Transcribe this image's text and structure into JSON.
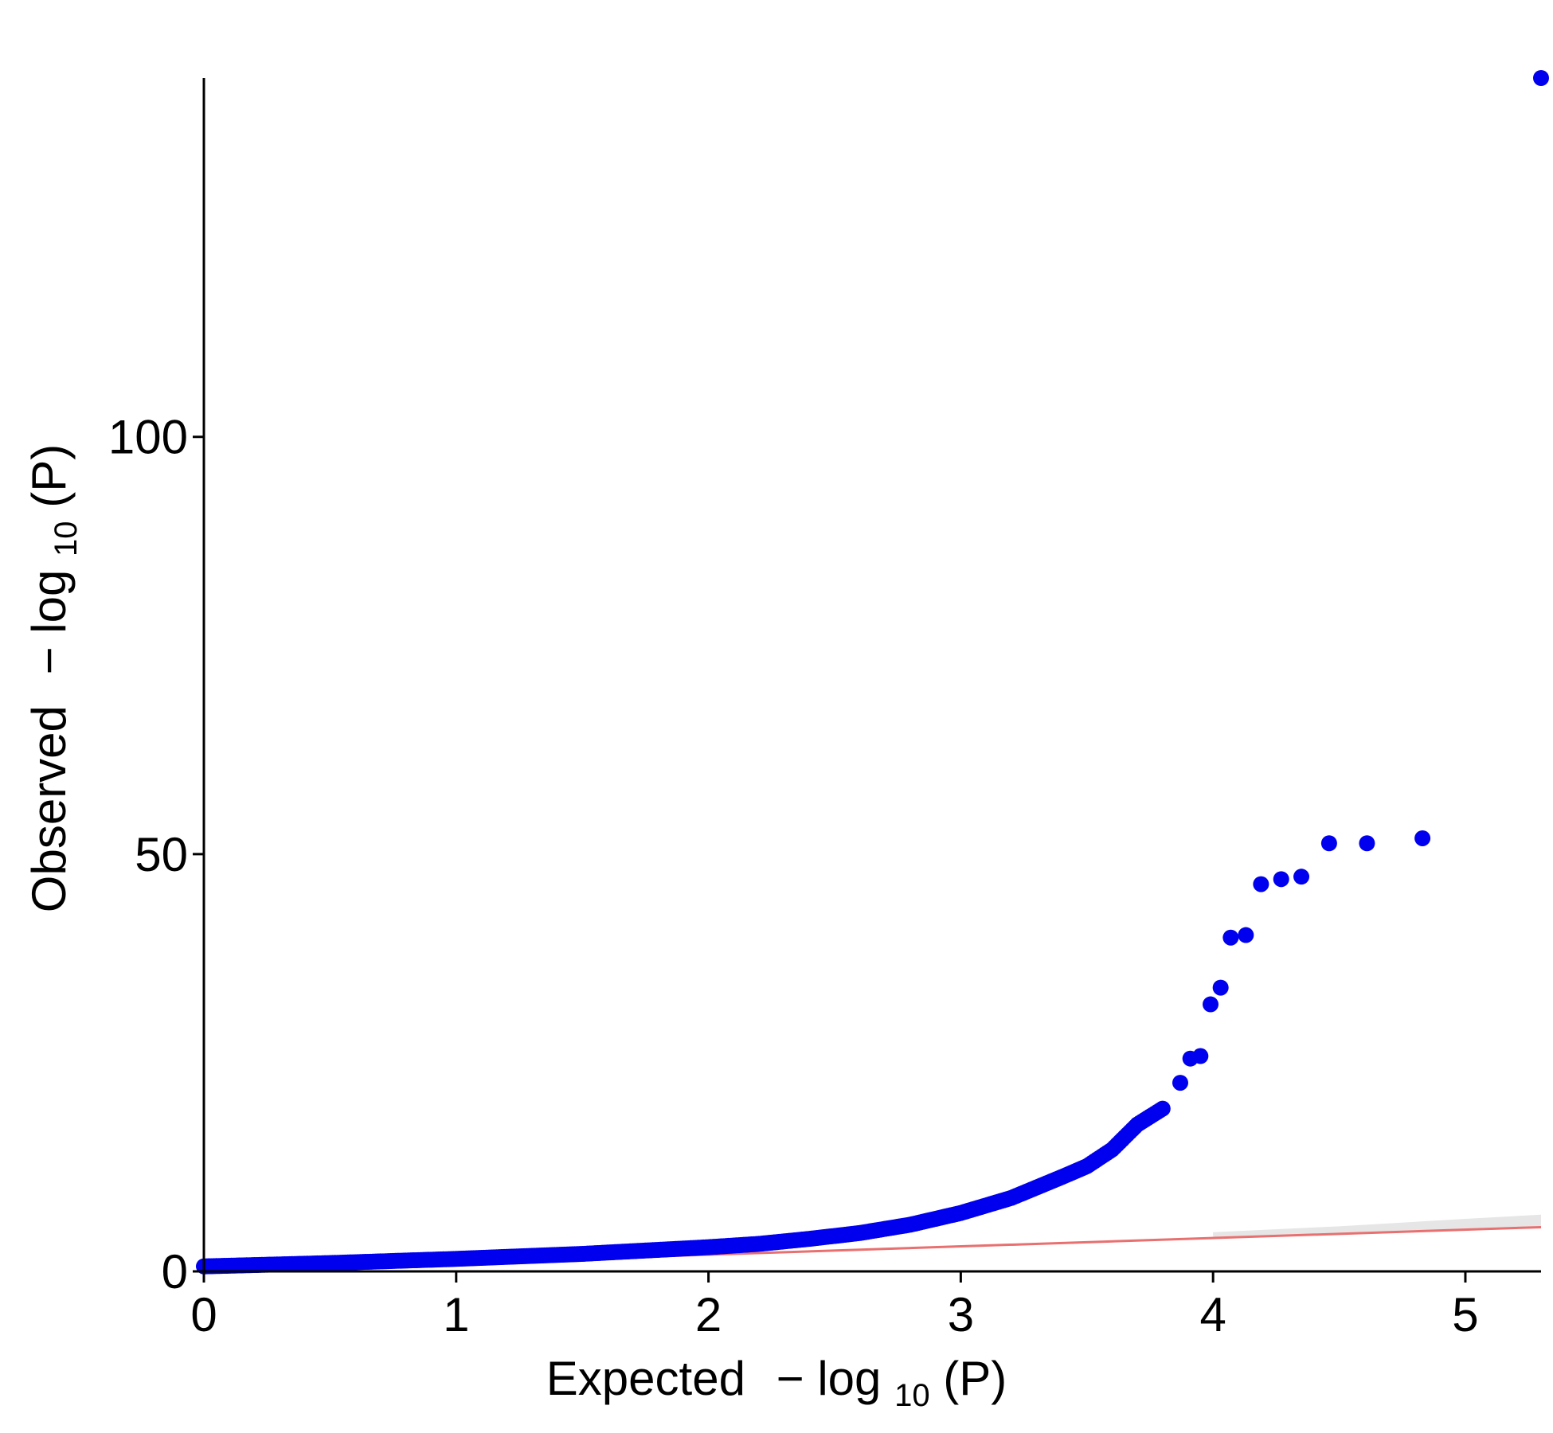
{
  "chart_data": {
    "type": "scatter",
    "title": "",
    "xlabel": {
      "main": "Expected",
      "minus": "−",
      "log": "log",
      "sub": "10",
      "tail": "(P)"
    },
    "ylabel": {
      "main": "Observed",
      "minus": "−",
      "log": "log",
      "sub": "10",
      "tail": "(P)"
    },
    "xlim": [
      0,
      5.3
    ],
    "ylim": [
      0,
      143
    ],
    "x_ticks": [
      0,
      1,
      2,
      3,
      4,
      5
    ],
    "x_tick_labels": [
      "0",
      "1",
      "2",
      "3",
      "4",
      "5"
    ],
    "y_ticks": [
      0,
      50,
      100
    ],
    "y_tick_labels": [
      "0",
      "50",
      "100"
    ],
    "grid": false,
    "colors": {
      "points": "#0000ee",
      "reference_line": "#e87070",
      "confidence_band": "#e6e6e6",
      "axis": "#000000"
    },
    "series": [
      {
        "kind": "points",
        "curve_knots": [
          [
            0,
            0.6
          ],
          [
            0.5,
            1.0
          ],
          [
            1.0,
            1.5
          ],
          [
            1.5,
            2.1
          ],
          [
            2.0,
            2.9
          ],
          [
            2.2,
            3.3
          ],
          [
            2.4,
            3.9
          ],
          [
            2.6,
            4.6
          ],
          [
            2.8,
            5.6
          ],
          [
            3.0,
            7.0
          ],
          [
            3.2,
            8.8
          ],
          [
            3.4,
            11.3
          ],
          [
            3.5,
            12.6
          ],
          [
            3.6,
            14.6
          ],
          [
            3.7,
            17.6
          ],
          [
            3.8,
            19.5
          ]
        ],
        "outliers": [
          [
            3.87,
            22.6
          ],
          [
            3.91,
            25.5
          ],
          [
            3.95,
            25.8
          ],
          [
            3.99,
            32.0
          ],
          [
            4.03,
            34.0
          ],
          [
            4.07,
            40.0
          ],
          [
            4.13,
            40.3
          ],
          [
            4.19,
            46.4
          ],
          [
            4.27,
            47.0
          ],
          [
            4.35,
            47.3
          ],
          [
            4.46,
            51.3
          ],
          [
            4.61,
            51.3
          ],
          [
            4.83,
            51.9
          ],
          [
            5.3,
            143.0
          ]
        ]
      },
      {
        "kind": "reference_line",
        "x": [
          0,
          5.3
        ],
        "y": [
          0,
          5.3
        ]
      },
      {
        "kind": "confidence_band",
        "x": [
          4.0,
          4.5,
          5.0,
          5.3
        ],
        "upper": [
          4.7,
          5.4,
          6.3,
          6.8
        ],
        "lower": [
          4.0,
          4.5,
          5.0,
          5.3
        ]
      }
    ]
  }
}
